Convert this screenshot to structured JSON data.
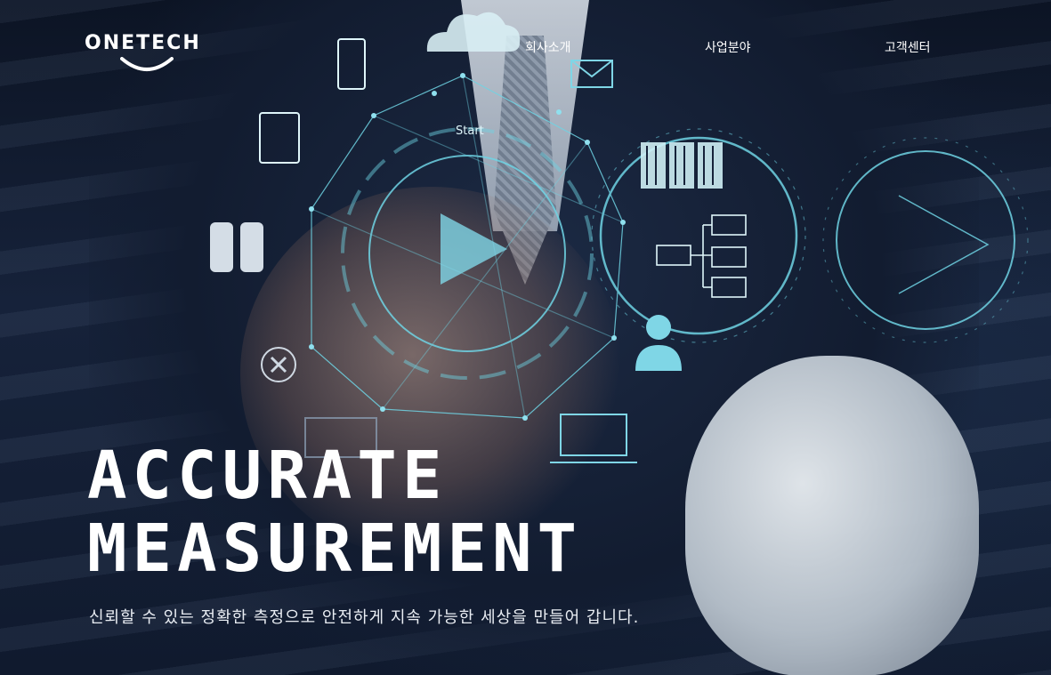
{
  "brand": {
    "logo_text": "ONETECH"
  },
  "nav": {
    "items": [
      {
        "label": "회사소개"
      },
      {
        "label": "사업분야"
      },
      {
        "label": "고객센터"
      }
    ]
  },
  "hero": {
    "headline_line1": "ACCURATE",
    "headline_line2": "MEASUREMENT",
    "subtitle": "신뢰할 수 있는 정확한 측정으로 안전하게 지속 가능한 세상을 만들어 갑니다.",
    "overlay_label": "Start"
  },
  "colors": {
    "accent": "#6fd4e4",
    "text": "#ffffff",
    "background": "#0f1a2e"
  },
  "icons": [
    "cloud-icon",
    "phone-icon",
    "tablet-icon",
    "mail-icon",
    "database-icon",
    "server-icon",
    "network-icon",
    "user-icon",
    "laptop-icon",
    "monitor-icon",
    "close-circle-icon",
    "play-icon",
    "arrow-right-icon"
  ]
}
